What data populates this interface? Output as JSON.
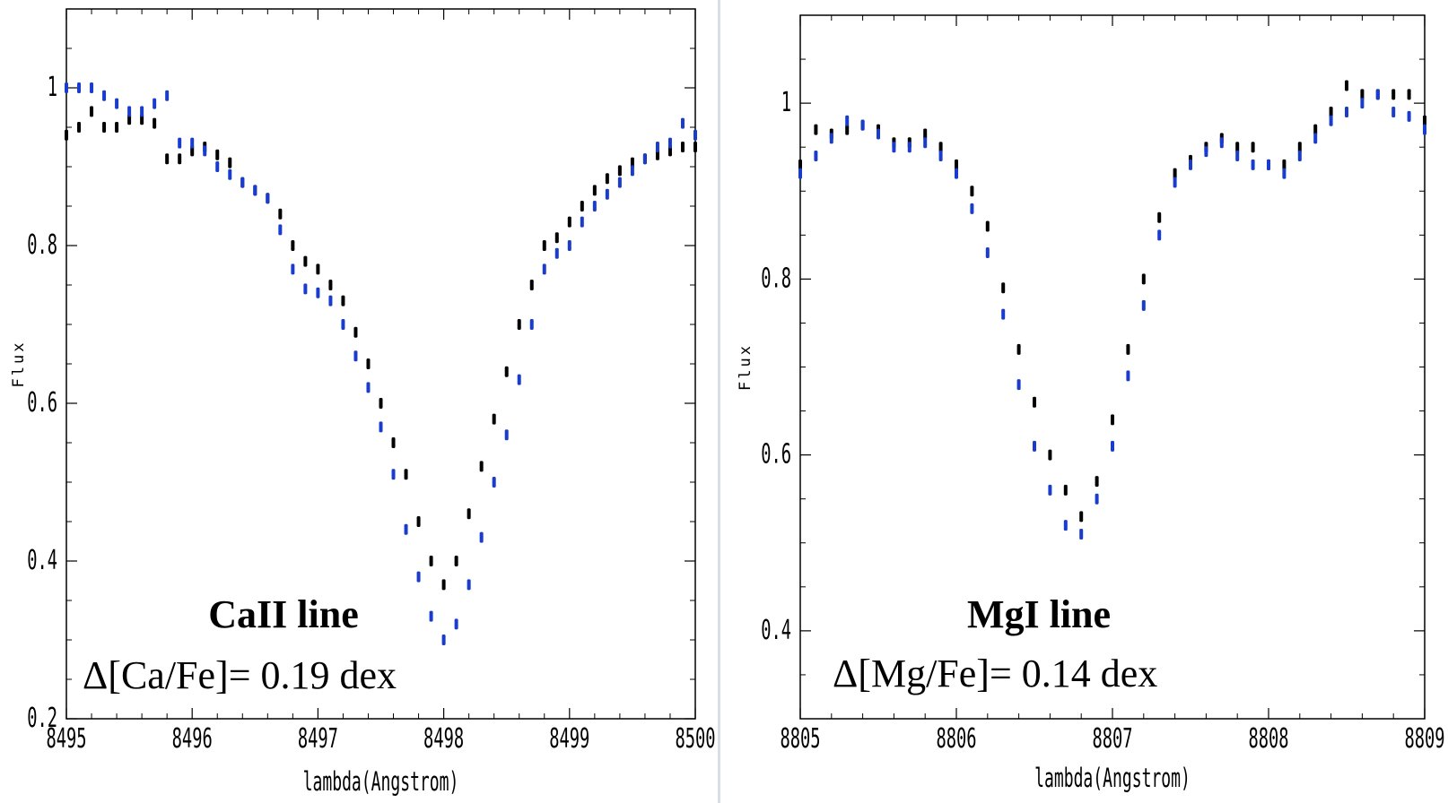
{
  "colors": {
    "series_a": "#000000",
    "series_b": "#1a3ccc",
    "divider": "#d8dde6"
  },
  "chart_data": [
    {
      "type": "scatter",
      "xlabel": "lambda(Angstrom)",
      "ylabel": "Flux",
      "xlim": [
        8495,
        8500
      ],
      "ylim": [
        0.2,
        1.1
      ],
      "xticks": [
        "8495",
        "8496",
        "8497",
        "8498",
        "8499",
        "8500"
      ],
      "yticks": [
        [
          "0.2",
          0.2
        ],
        [
          "0.4",
          0.4
        ],
        [
          "0.6",
          0.6
        ],
        [
          "0.8",
          0.8
        ],
        [
          "1",
          1.0
        ]
      ],
      "annotation_title": "CaII line",
      "annotation_value": "Δ[Ca/Fe]= 0.19 dex",
      "series": [
        {
          "name": "black",
          "color": "#000000",
          "points": [
            [
              8495.0,
              0.94
            ],
            [
              8495.1,
              0.95
            ],
            [
              8495.2,
              0.97
            ],
            [
              8495.3,
              0.95
            ],
            [
              8495.4,
              0.95
            ],
            [
              8495.5,
              0.96
            ],
            [
              8495.6,
              0.96
            ],
            [
              8495.7,
              0.955
            ],
            [
              8495.8,
              0.91
            ],
            [
              8495.9,
              0.91
            ],
            [
              8496.0,
              0.92
            ],
            [
              8496.1,
              0.925
            ],
            [
              8496.2,
              0.915
            ],
            [
              8496.3,
              0.905
            ],
            [
              8496.4,
              0.88
            ],
            [
              8496.5,
              0.87
            ],
            [
              8496.6,
              0.86
            ],
            [
              8496.7,
              0.84
            ],
            [
              8496.8,
              0.8
            ],
            [
              8496.9,
              0.78
            ],
            [
              8497.0,
              0.77
            ],
            [
              8497.1,
              0.75
            ],
            [
              8497.2,
              0.73
            ],
            [
              8497.3,
              0.69
            ],
            [
              8497.4,
              0.65
            ],
            [
              8497.5,
              0.6
            ],
            [
              8497.6,
              0.55
            ],
            [
              8497.7,
              0.51
            ],
            [
              8497.8,
              0.45
            ],
            [
              8497.9,
              0.4
            ],
            [
              8498.0,
              0.37
            ],
            [
              8498.1,
              0.4
            ],
            [
              8498.2,
              0.46
            ],
            [
              8498.3,
              0.52
            ],
            [
              8498.4,
              0.58
            ],
            [
              8498.5,
              0.64
            ],
            [
              8498.6,
              0.7
            ],
            [
              8498.7,
              0.75
            ],
            [
              8498.8,
              0.8
            ],
            [
              8498.9,
              0.81
            ],
            [
              8499.0,
              0.83
            ],
            [
              8499.1,
              0.85
            ],
            [
              8499.2,
              0.87
            ],
            [
              8499.3,
              0.885
            ],
            [
              8499.4,
              0.895
            ],
            [
              8499.5,
              0.905
            ],
            [
              8499.6,
              0.91
            ],
            [
              8499.7,
              0.915
            ],
            [
              8499.8,
              0.92
            ],
            [
              8499.9,
              0.925
            ],
            [
              8500.0,
              0.925
            ]
          ]
        },
        {
          "name": "blue",
          "color": "#1a3ccc",
          "points": [
            [
              8495.0,
              1.0
            ],
            [
              8495.1,
              1.0
            ],
            [
              8495.2,
              1.0
            ],
            [
              8495.3,
              0.99
            ],
            [
              8495.4,
              0.98
            ],
            [
              8495.5,
              0.97
            ],
            [
              8495.6,
              0.97
            ],
            [
              8495.7,
              0.98
            ],
            [
              8495.8,
              0.99
            ],
            [
              8495.9,
              0.93
            ],
            [
              8496.0,
              0.93
            ],
            [
              8496.1,
              0.92
            ],
            [
              8496.2,
              0.9
            ],
            [
              8496.3,
              0.89
            ],
            [
              8496.4,
              0.88
            ],
            [
              8496.5,
              0.87
            ],
            [
              8496.6,
              0.86
            ],
            [
              8496.7,
              0.82
            ],
            [
              8496.8,
              0.77
            ],
            [
              8496.9,
              0.745
            ],
            [
              8497.0,
              0.74
            ],
            [
              8497.1,
              0.73
            ],
            [
              8497.2,
              0.7
            ],
            [
              8497.3,
              0.66
            ],
            [
              8497.4,
              0.62
            ],
            [
              8497.5,
              0.57
            ],
            [
              8497.6,
              0.51
            ],
            [
              8497.7,
              0.44
            ],
            [
              8497.8,
              0.38
            ],
            [
              8497.9,
              0.33
            ],
            [
              8498.0,
              0.3
            ],
            [
              8498.1,
              0.32
            ],
            [
              8498.2,
              0.37
            ],
            [
              8498.3,
              0.43
            ],
            [
              8498.4,
              0.5
            ],
            [
              8498.5,
              0.56
            ],
            [
              8498.6,
              0.63
            ],
            [
              8498.7,
              0.7
            ],
            [
              8498.8,
              0.77
            ],
            [
              8498.9,
              0.79
            ],
            [
              8499.0,
              0.8
            ],
            [
              8499.1,
              0.83
            ],
            [
              8499.2,
              0.85
            ],
            [
              8499.3,
              0.865
            ],
            [
              8499.4,
              0.88
            ],
            [
              8499.5,
              0.895
            ],
            [
              8499.6,
              0.91
            ],
            [
              8499.7,
              0.925
            ],
            [
              8499.8,
              0.93
            ],
            [
              8499.9,
              0.955
            ],
            [
              8500.0,
              0.94
            ]
          ]
        }
      ]
    },
    {
      "type": "scatter",
      "xlabel": "lambda(Angstrom)",
      "ylabel": "Flux",
      "xlim": [
        8805,
        8809
      ],
      "ylim": [
        0.3,
        1.1
      ],
      "xticks": [
        "8805",
        "8806",
        "8807",
        "8808",
        "8809"
      ],
      "yticks": [
        [
          "0.4",
          0.4
        ],
        [
          "0.6",
          0.6
        ],
        [
          "0.8",
          0.8
        ],
        [
          "1",
          1.0
        ]
      ],
      "annotation_title": "MgI line",
      "annotation_value": "Δ[Mg/Fe]= 0.14 dex",
      "series": [
        {
          "name": "black",
          "color": "#000000",
          "points": [
            [
              8805.0,
              0.93
            ],
            [
              8805.1,
              0.97
            ],
            [
              8805.2,
              0.965
            ],
            [
              8805.3,
              0.97
            ],
            [
              8805.4,
              0.975
            ],
            [
              8805.5,
              0.97
            ],
            [
              8805.6,
              0.955
            ],
            [
              8805.7,
              0.955
            ],
            [
              8805.8,
              0.965
            ],
            [
              8805.9,
              0.95
            ],
            [
              8806.0,
              0.93
            ],
            [
              8806.1,
              0.9
            ],
            [
              8806.2,
              0.86
            ],
            [
              8806.3,
              0.79
            ],
            [
              8806.4,
              0.72
            ],
            [
              8806.5,
              0.66
            ],
            [
              8806.6,
              0.6
            ],
            [
              8806.7,
              0.56
            ],
            [
              8806.8,
              0.53
            ],
            [
              8806.9,
              0.57
            ],
            [
              8807.0,
              0.64
            ],
            [
              8807.1,
              0.72
            ],
            [
              8807.2,
              0.8
            ],
            [
              8807.3,
              0.87
            ],
            [
              8807.4,
              0.92
            ],
            [
              8807.5,
              0.935
            ],
            [
              8807.6,
              0.95
            ],
            [
              8807.7,
              0.96
            ],
            [
              8807.8,
              0.95
            ],
            [
              8807.9,
              0.95
            ],
            [
              8808.0,
              0.93
            ],
            [
              8808.1,
              0.93
            ],
            [
              8808.2,
              0.95
            ],
            [
              8808.3,
              0.97
            ],
            [
              8808.4,
              0.99
            ],
            [
              8808.5,
              1.02
            ],
            [
              8808.6,
              1.01
            ],
            [
              8808.7,
              1.01
            ],
            [
              8808.8,
              1.01
            ],
            [
              8808.9,
              1.01
            ],
            [
              8809.0,
              0.98
            ]
          ]
        },
        {
          "name": "blue",
          "color": "#1a3ccc",
          "points": [
            [
              8805.0,
              0.92
            ],
            [
              8805.1,
              0.94
            ],
            [
              8805.2,
              0.96
            ],
            [
              8805.3,
              0.98
            ],
            [
              8805.4,
              0.975
            ],
            [
              8805.5,
              0.965
            ],
            [
              8805.6,
              0.95
            ],
            [
              8805.7,
              0.95
            ],
            [
              8805.8,
              0.955
            ],
            [
              8805.9,
              0.94
            ],
            [
              8806.0,
              0.92
            ],
            [
              8806.1,
              0.88
            ],
            [
              8806.2,
              0.83
            ],
            [
              8806.3,
              0.76
            ],
            [
              8806.4,
              0.68
            ],
            [
              8806.5,
              0.61
            ],
            [
              8806.6,
              0.56
            ],
            [
              8806.7,
              0.52
            ],
            [
              8806.8,
              0.51
            ],
            [
              8806.9,
              0.55
            ],
            [
              8807.0,
              0.61
            ],
            [
              8807.1,
              0.69
            ],
            [
              8807.2,
              0.77
            ],
            [
              8807.3,
              0.85
            ],
            [
              8807.4,
              0.91
            ],
            [
              8807.5,
              0.93
            ],
            [
              8807.6,
              0.945
            ],
            [
              8807.7,
              0.955
            ],
            [
              8807.8,
              0.94
            ],
            [
              8807.9,
              0.93
            ],
            [
              8808.0,
              0.93
            ],
            [
              8808.1,
              0.92
            ],
            [
              8808.2,
              0.94
            ],
            [
              8808.3,
              0.96
            ],
            [
              8808.4,
              0.98
            ],
            [
              8808.5,
              0.99
            ],
            [
              8808.6,
              1.0
            ],
            [
              8808.7,
              1.01
            ],
            [
              8808.8,
              0.99
            ],
            [
              8808.9,
              0.985
            ],
            [
              8809.0,
              0.97
            ]
          ]
        }
      ]
    }
  ]
}
